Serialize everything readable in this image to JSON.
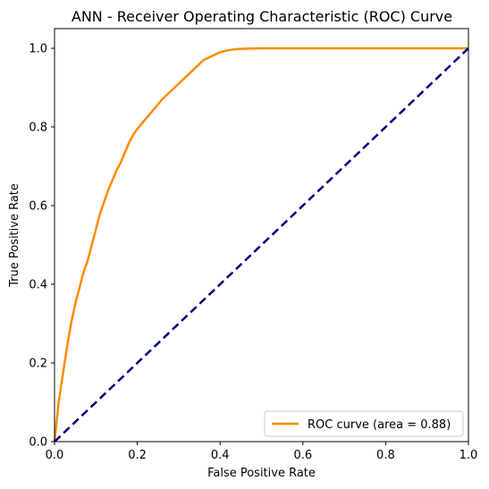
{
  "chart_data": {
    "type": "line",
    "title": "ANN - Receiver Operating Characteristic (ROC) Curve",
    "xlabel": "False Positive Rate",
    "ylabel": "True Positive Rate",
    "xlim": [
      0.0,
      1.0
    ],
    "ylim": [
      0.0,
      1.05
    ],
    "xticks": [
      "0.0",
      "0.2",
      "0.4",
      "0.6",
      "0.8",
      "1.0"
    ],
    "yticks": [
      "0.0",
      "0.2",
      "0.4",
      "0.6",
      "0.8",
      "1.0"
    ],
    "grid": false,
    "legend_placement": "lower-right",
    "series": [
      {
        "name": "ROC curve (area = 0.88)",
        "color": "#ff8c00",
        "style": "solid",
        "x": [
          0.0,
          0.005,
          0.01,
          0.02,
          0.03,
          0.04,
          0.05,
          0.06,
          0.07,
          0.08,
          0.09,
          0.1,
          0.11,
          0.12,
          0.13,
          0.14,
          0.15,
          0.16,
          0.17,
          0.18,
          0.19,
          0.2,
          0.22,
          0.24,
          0.26,
          0.28,
          0.3,
          0.32,
          0.34,
          0.36,
          0.38,
          0.4,
          0.42,
          0.44,
          0.46,
          0.5,
          0.55,
          0.6,
          1.0
        ],
        "y": [
          0.0,
          0.05,
          0.1,
          0.17,
          0.24,
          0.3,
          0.35,
          0.39,
          0.43,
          0.46,
          0.5,
          0.54,
          0.58,
          0.61,
          0.64,
          0.665,
          0.69,
          0.71,
          0.735,
          0.76,
          0.78,
          0.795,
          0.82,
          0.845,
          0.87,
          0.89,
          0.91,
          0.93,
          0.95,
          0.97,
          0.98,
          0.99,
          0.995,
          0.998,
          0.999,
          1.0,
          1.0,
          1.0,
          1.0
        ]
      },
      {
        "name": "",
        "color": "#000080",
        "style": "dashed",
        "x": [
          0.0,
          1.0
        ],
        "y": [
          0.0,
          1.0
        ]
      }
    ]
  }
}
